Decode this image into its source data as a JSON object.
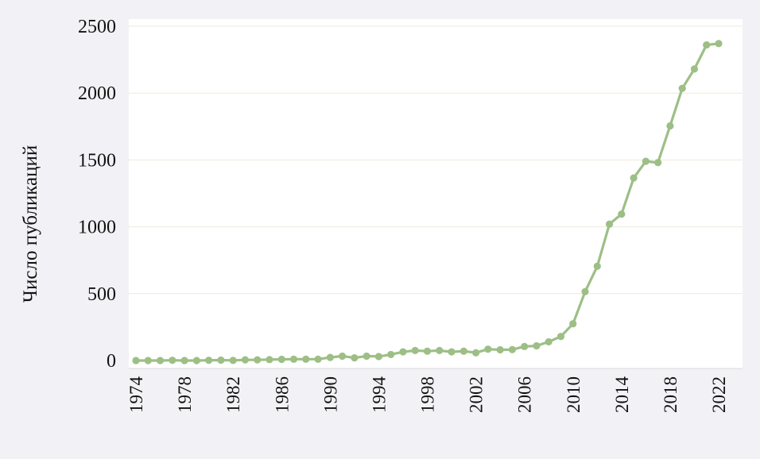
{
  "chart_data": {
    "type": "line",
    "ylabel": "Число публикаций",
    "xlabel": "",
    "title": "",
    "ylim": [
      0,
      2500
    ],
    "xlim": [
      1974,
      2022
    ],
    "yticks": [
      0,
      500,
      1000,
      1500,
      2000,
      2500
    ],
    "xticks": [
      1974,
      1978,
      1982,
      1986,
      1990,
      1994,
      1998,
      2002,
      2006,
      2010,
      2014,
      2018,
      2022
    ],
    "grid": "horizontal",
    "legend": "none",
    "colors": {
      "line": "#9dbf86",
      "marker": "#9dbf86",
      "grid": "#efeadb",
      "background": "#ffffff"
    },
    "series": [
      {
        "x": [
          1974,
          1975,
          1976,
          1977,
          1978,
          1979,
          1980,
          1981,
          1982,
          1983,
          1984,
          1985,
          1986,
          1987,
          1988,
          1989,
          1990,
          1991,
          1992,
          1993,
          1994,
          1995,
          1996,
          1997,
          1998,
          1999,
          2000,
          2001,
          2002,
          2003,
          2004,
          2005,
          2006,
          2007,
          2008,
          2009,
          2010,
          2011,
          2012,
          2013,
          2014,
          2015,
          2016,
          2017,
          2018,
          2019,
          2020,
          2021,
          2022
        ],
        "values": [
          0,
          0,
          0,
          2,
          0,
          0,
          2,
          3,
          1,
          5,
          5,
          7,
          9,
          10,
          10,
          10,
          23,
          33,
          20,
          33,
          30,
          45,
          65,
          75,
          70,
          75,
          65,
          70,
          58,
          85,
          80,
          82,
          105,
          110,
          140,
          180,
          275,
          515,
          705,
          1020,
          1095,
          1365,
          1490,
          1480,
          1755,
          2035,
          2180,
          2360,
          2370
        ]
      }
    ]
  }
}
